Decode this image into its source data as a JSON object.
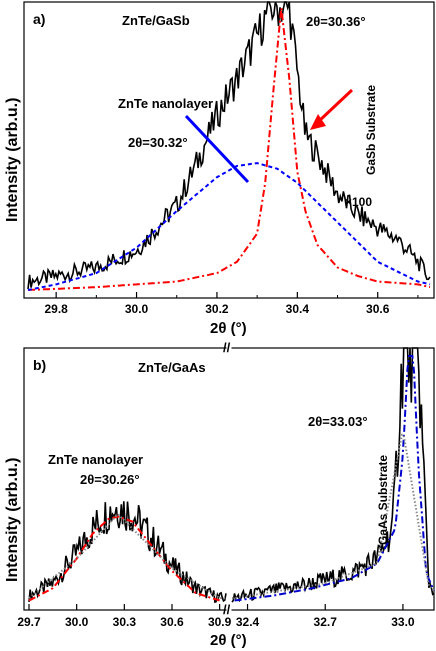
{
  "chart_data": [
    {
      "type": "line",
      "panel_label": "a)",
      "sample_label": "ZnTe/GaSb",
      "xlabel": "2θ (°)",
      "ylabel": "Intensity (arb.u.)",
      "xlim": [
        29.72,
        30.74
      ],
      "ylim": [
        0,
        1
      ],
      "x_ticks": [
        "29.8",
        "30.0",
        "30.2",
        "30.4",
        "30.6"
      ],
      "x_tick_values": [
        29.8,
        30.0,
        30.2,
        30.4,
        30.6
      ],
      "annotations": {
        "substrate_peak": "2θ=30.36°",
        "substrate_name": "GaSb Substrate",
        "nanolayer_name": "ZnTe nanolayer",
        "nanolayer_peak": "2θ=30.32°",
        "scale": "×100"
      },
      "series": [
        {
          "color": "#000000",
          "style": "noisy-measured",
          "x": [
            29.73,
            29.8,
            29.9,
            30.0,
            30.1,
            30.15,
            30.2,
            30.25,
            30.3,
            30.33,
            30.38,
            30.42,
            30.45,
            30.5,
            30.55,
            30.6,
            30.65,
            30.7,
            30.73
          ],
          "y": [
            0.03,
            0.05,
            0.08,
            0.14,
            0.3,
            0.45,
            0.62,
            0.75,
            0.9,
            1.0,
            1.0,
            0.55,
            0.48,
            0.34,
            0.27,
            0.22,
            0.18,
            0.1,
            0.04
          ]
        },
        {
          "color": "#ff0000",
          "style": "dash-dot",
          "x": [
            29.73,
            29.9,
            30.0,
            30.1,
            30.2,
            30.25,
            30.3,
            30.32,
            30.34,
            30.36,
            30.38,
            30.4,
            30.42,
            30.45,
            30.5,
            30.55,
            30.6,
            30.7,
            30.73
          ],
          "y": [
            0.0,
            0.01,
            0.02,
            0.03,
            0.06,
            0.1,
            0.2,
            0.38,
            0.7,
            1.0,
            0.75,
            0.42,
            0.28,
            0.16,
            0.08,
            0.05,
            0.03,
            0.02,
            0.01
          ]
        },
        {
          "color": "#0000ff",
          "style": "dashed",
          "x": [
            29.73,
            29.8,
            29.9,
            30.0,
            30.1,
            30.2,
            30.25,
            30.3,
            30.35,
            30.4,
            30.5,
            30.6,
            30.7,
            30.73
          ],
          "y": [
            0.0,
            0.02,
            0.06,
            0.15,
            0.28,
            0.4,
            0.44,
            0.45,
            0.43,
            0.38,
            0.24,
            0.1,
            0.03,
            0.02
          ]
        }
      ]
    },
    {
      "type": "line",
      "panel_label": "b)",
      "sample_label": "ZnTe/GaAs",
      "xlabel": "2θ (°)",
      "ylabel": "Intensity (arb.u.)",
      "axis_break": "//",
      "x_ticks": [
        "29.7",
        "30.0",
        "30.3",
        "30.6",
        "30.9",
        "32.4",
        "32.7",
        "33.0"
      ],
      "x_tick_values": [
        29.7,
        30.0,
        30.3,
        30.6,
        30.9,
        32.4,
        32.7,
        33.0
      ],
      "x_segments": [
        [
          29.7,
          30.94
        ],
        [
          32.34,
          33.12
        ]
      ],
      "ylim": [
        0,
        1
      ],
      "annotations": {
        "nanolayer_name": "ZnTe nanolayer",
        "nanolayer_peak": "2θ=30.26°",
        "substrate_peak": "2θ=33.03°",
        "substrate_name": "GaAs Substrate"
      },
      "series": [
        {
          "color": "#000000",
          "style": "noisy-measured",
          "x": [
            29.7,
            29.85,
            30.0,
            30.1,
            30.2,
            30.26,
            30.35,
            30.45,
            30.6,
            30.75,
            30.9,
            32.35,
            32.5,
            32.65,
            32.8,
            32.9,
            32.96,
            33.0,
            33.06,
            33.1,
            33.12
          ],
          "y": [
            0.03,
            0.08,
            0.2,
            0.3,
            0.37,
            0.39,
            0.36,
            0.28,
            0.15,
            0.06,
            0.02,
            0.02,
            0.05,
            0.08,
            0.12,
            0.18,
            0.3,
            1.0,
            1.0,
            0.08,
            0.05
          ]
        },
        {
          "color": "#ff0000",
          "style": "dash-dot",
          "x": [
            29.7,
            29.85,
            30.0,
            30.1,
            30.2,
            30.26,
            30.35,
            30.45,
            30.6,
            30.75,
            30.9
          ],
          "y": [
            0.01,
            0.06,
            0.18,
            0.28,
            0.34,
            0.35,
            0.33,
            0.25,
            0.13,
            0.04,
            0.01
          ]
        },
        {
          "color": "#0000cc",
          "style": "dash-dot",
          "x": [
            32.35,
            32.5,
            32.65,
            32.8,
            32.9,
            32.97,
            33.0,
            33.02,
            33.04,
            33.06,
            33.09,
            33.12
          ],
          "y": [
            0.01,
            0.03,
            0.06,
            0.1,
            0.16,
            0.3,
            0.6,
            1.0,
            1.0,
            0.55,
            0.12,
            0.05
          ]
        },
        {
          "color": "#888888",
          "style": "dotted",
          "x": [
            29.7,
            30.0,
            30.26,
            30.6,
            30.9,
            32.35,
            32.7,
            32.9,
            33.0,
            33.1,
            33.12
          ],
          "y": [
            0.02,
            0.18,
            0.36,
            0.14,
            0.02,
            0.02,
            0.08,
            0.16,
            0.7,
            0.07,
            0.05
          ]
        }
      ]
    }
  ]
}
